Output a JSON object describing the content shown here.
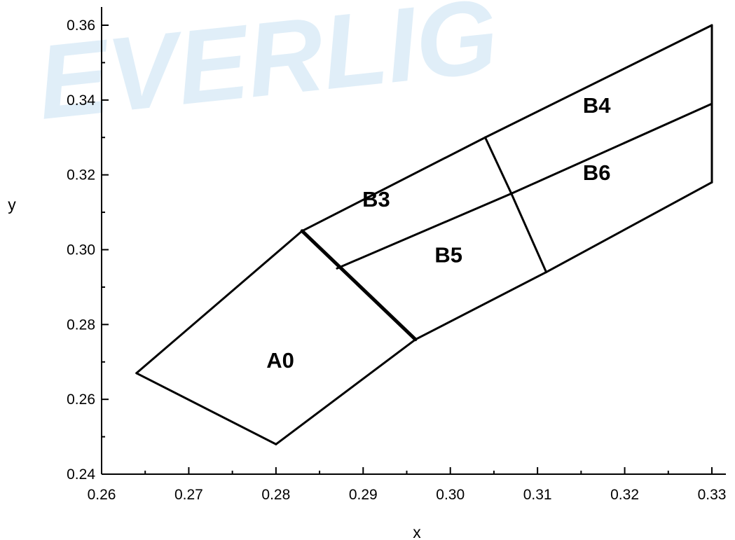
{
  "watermark": "EVERLIG",
  "chart_data": {
    "type": "diagram",
    "xlabel": "x",
    "ylabel": "y",
    "xlim": [
      0.26,
      0.33
    ],
    "ylim": [
      0.24,
      0.36
    ],
    "x_ticks": [
      "0.26",
      "0.27",
      "0.28",
      "0.29",
      "0.30",
      "0.31",
      "0.32",
      "0.33"
    ],
    "y_ticks": [
      "0.24",
      "0.26",
      "0.28",
      "0.30",
      "0.32",
      "0.34",
      "0.36"
    ],
    "grid": false,
    "lines": [
      [
        [
          0.264,
          0.267
        ],
        [
          0.283,
          0.305
        ]
      ],
      [
        [
          0.264,
          0.267
        ],
        [
          0.28,
          0.248
        ]
      ],
      [
        [
          0.28,
          0.248
        ],
        [
          0.296,
          0.276
        ]
      ],
      [
        [
          0.296,
          0.276
        ],
        [
          0.311,
          0.294
        ]
      ],
      [
        [
          0.311,
          0.294
        ],
        [
          0.33,
          0.318
        ]
      ],
      [
        [
          0.33,
          0.318
        ],
        [
          0.33,
          0.36
        ]
      ],
      [
        [
          0.283,
          0.305
        ],
        [
          0.304,
          0.33
        ]
      ],
      [
        [
          0.304,
          0.33
        ],
        [
          0.33,
          0.36
        ]
      ],
      [
        [
          0.287,
          0.295
        ],
        [
          0.307,
          0.315
        ]
      ],
      [
        [
          0.307,
          0.315
        ],
        [
          0.33,
          0.339
        ]
      ],
      [
        [
          0.304,
          0.33
        ],
        [
          0.307,
          0.315
        ]
      ],
      [
        [
          0.307,
          0.315
        ],
        [
          0.311,
          0.294
        ]
      ]
    ],
    "bold_lines": [
      [
        [
          0.283,
          0.305
        ],
        [
          0.296,
          0.276
        ]
      ]
    ],
    "regions": [
      {
        "label": "A0",
        "x": 0.2805,
        "y": 0.2685
      },
      {
        "label": "B3",
        "x": 0.2915,
        "y": 0.3115
      },
      {
        "label": "B4",
        "x": 0.3168,
        "y": 0.3366
      },
      {
        "label": "B5",
        "x": 0.2998,
        "y": 0.2966
      },
      {
        "label": "B6",
        "x": 0.3168,
        "y": 0.3186
      }
    ]
  }
}
